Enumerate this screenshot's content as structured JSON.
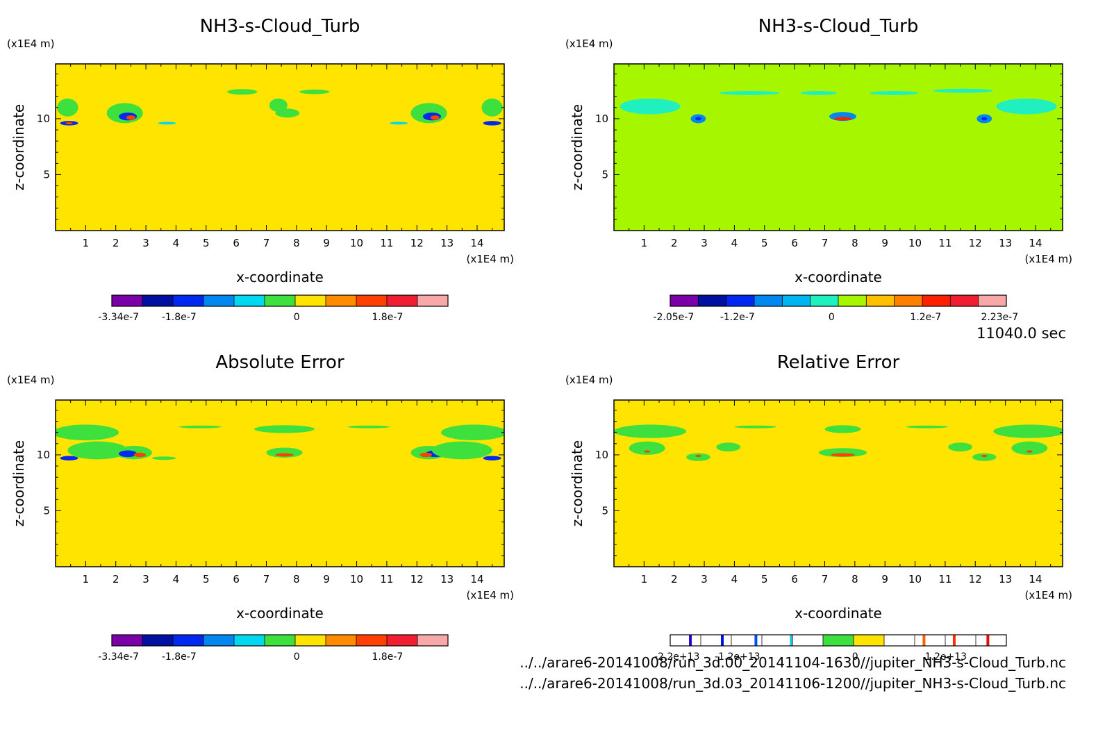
{
  "time_label": "11040.0 sec",
  "files": [
    "../../arare6-20141008/run_3d.00_20141104-1630//jupiter_NH3-s-Cloud_Turb.nc",
    "../../arare6-20141008/run_3d.03_20141106-1200//jupiter_NH3-s-Cloud_Turb.nc"
  ],
  "chart_data": [
    {
      "type": "heatmap",
      "title": "NH3-s-Cloud_Turb",
      "xlabel": "x-coordinate",
      "ylabel": "z-coordinate",
      "x_unit": "(x1E4 m)",
      "y_unit": "(x1E4 m)",
      "xlim": [
        0,
        14.9
      ],
      "ylim": [
        0,
        14.9
      ],
      "xticks": [
        1,
        2,
        3,
        4,
        5,
        6,
        7,
        8,
        9,
        10,
        11,
        12,
        13,
        14
      ],
      "yticks": [
        5,
        10
      ],
      "background_color": "#ffe400",
      "colorbar": {
        "colors": [
          "#7a00a8",
          "#0010a0",
          "#0028f0",
          "#0088f0",
          "#00d8f0",
          "#3ee03e",
          "#ffe400",
          "#ff8c00",
          "#ff4000",
          "#f01e30",
          "#f8a8a8"
        ],
        "labels": [
          "-3.34e-7",
          "-1.8e-7",
          "0",
          "1.8e-7"
        ]
      },
      "features": [
        {
          "x": 0.4,
          "z": 11.0,
          "rx": 0.35,
          "rz": 0.8,
          "color": "#3ee03e"
        },
        {
          "x": 0.45,
          "z": 9.6,
          "rx": 0.3,
          "rz": 0.2,
          "color": "#0028f0"
        },
        {
          "x": 0.45,
          "z": 9.6,
          "rx": 0.12,
          "rz": 0.1,
          "color": "#ff4000"
        },
        {
          "x": 2.3,
          "z": 10.5,
          "rx": 0.6,
          "rz": 0.9,
          "color": "#3ee03e"
        },
        {
          "x": 2.4,
          "z": 10.2,
          "rx": 0.3,
          "rz": 0.35,
          "color": "#0028f0"
        },
        {
          "x": 2.5,
          "z": 10.1,
          "rx": 0.15,
          "rz": 0.2,
          "color": "#ff4000"
        },
        {
          "x": 3.7,
          "z": 9.6,
          "rx": 0.3,
          "rz": 0.12,
          "color": "#00d8f0"
        },
        {
          "x": 6.2,
          "z": 12.4,
          "rx": 0.5,
          "rz": 0.25,
          "color": "#3ee03e"
        },
        {
          "x": 7.4,
          "z": 11.2,
          "rx": 0.3,
          "rz": 0.6,
          "color": "#3ee03e"
        },
        {
          "x": 7.7,
          "z": 10.5,
          "rx": 0.4,
          "rz": 0.4,
          "color": "#3ee03e"
        },
        {
          "x": 8.6,
          "z": 12.4,
          "rx": 0.5,
          "rz": 0.2,
          "color": "#3ee03e"
        },
        {
          "x": 11.4,
          "z": 9.6,
          "rx": 0.3,
          "rz": 0.12,
          "color": "#00d8f0"
        },
        {
          "x": 12.4,
          "z": 10.5,
          "rx": 0.6,
          "rz": 0.9,
          "color": "#3ee03e"
        },
        {
          "x": 12.5,
          "z": 10.2,
          "rx": 0.3,
          "rz": 0.35,
          "color": "#0028f0"
        },
        {
          "x": 12.6,
          "z": 10.1,
          "rx": 0.15,
          "rz": 0.2,
          "color": "#ff4000"
        },
        {
          "x": 14.5,
          "z": 11.0,
          "rx": 0.35,
          "rz": 0.8,
          "color": "#3ee03e"
        },
        {
          "x": 14.5,
          "z": 9.6,
          "rx": 0.3,
          "rz": 0.2,
          "color": "#0028f0"
        }
      ]
    },
    {
      "type": "heatmap",
      "title": "NH3-s-Cloud_Turb",
      "xlabel": "x-coordinate",
      "ylabel": "z-coordinate",
      "x_unit": "(x1E4 m)",
      "y_unit": "(x1E4 m)",
      "xlim": [
        0,
        14.9
      ],
      "ylim": [
        0,
        14.9
      ],
      "xticks": [
        1,
        2,
        3,
        4,
        5,
        6,
        7,
        8,
        9,
        10,
        11,
        12,
        13,
        14
      ],
      "yticks": [
        5,
        10
      ],
      "background_color": "#a6f600",
      "colorbar": {
        "colors": [
          "#7a00a8",
          "#0010a0",
          "#0028f0",
          "#0088f0",
          "#00b4f0",
          "#20f0c0",
          "#a6f600",
          "#ffc000",
          "#ff8000",
          "#ff2000",
          "#f01e30",
          "#f8a8a8"
        ],
        "labels": [
          "-2.05e-7",
          "-1.2e-7",
          "0",
          "1.2e-7",
          "2.23e-7"
        ]
      },
      "features": [
        {
          "x": 1.2,
          "z": 11.1,
          "rx": 1.0,
          "rz": 0.7,
          "color": "#20f0c0"
        },
        {
          "x": 2.8,
          "z": 10.0,
          "rx": 0.25,
          "rz": 0.4,
          "color": "#0088f0"
        },
        {
          "x": 2.8,
          "z": 10.0,
          "rx": 0.1,
          "rz": 0.15,
          "color": "#0028f0"
        },
        {
          "x": 4.5,
          "z": 12.3,
          "rx": 1.0,
          "rz": 0.18,
          "color": "#20f0c0"
        },
        {
          "x": 6.8,
          "z": 12.3,
          "rx": 0.6,
          "rz": 0.18,
          "color": "#20f0c0"
        },
        {
          "x": 7.6,
          "z": 10.2,
          "rx": 0.45,
          "rz": 0.4,
          "color": "#0088f0"
        },
        {
          "x": 7.6,
          "z": 10.0,
          "rx": 0.3,
          "rz": 0.15,
          "color": "#ff2000"
        },
        {
          "x": 9.3,
          "z": 12.3,
          "rx": 0.8,
          "rz": 0.18,
          "color": "#20f0c0"
        },
        {
          "x": 11.6,
          "z": 12.5,
          "rx": 1.0,
          "rz": 0.18,
          "color": "#20f0c0"
        },
        {
          "x": 12.3,
          "z": 10.0,
          "rx": 0.25,
          "rz": 0.4,
          "color": "#0088f0"
        },
        {
          "x": 12.3,
          "z": 10.0,
          "rx": 0.1,
          "rz": 0.15,
          "color": "#0028f0"
        },
        {
          "x": 13.7,
          "z": 11.1,
          "rx": 1.0,
          "rz": 0.7,
          "color": "#20f0c0"
        }
      ]
    },
    {
      "type": "heatmap",
      "title": "Absolute Error",
      "xlabel": "x-coordinate",
      "ylabel": "z-coordinate",
      "x_unit": "(x1E4 m)",
      "y_unit": "(x1E4 m)",
      "xlim": [
        0,
        14.9
      ],
      "ylim": [
        0,
        14.9
      ],
      "xticks": [
        1,
        2,
        3,
        4,
        5,
        6,
        7,
        8,
        9,
        10,
        11,
        12,
        13,
        14
      ],
      "yticks": [
        5,
        10
      ],
      "background_color": "#ffe400",
      "colorbar": {
        "colors": [
          "#7a00a8",
          "#0010a0",
          "#0028f0",
          "#0088f0",
          "#00d8f0",
          "#3ee03e",
          "#ffe400",
          "#ff8c00",
          "#ff4000",
          "#f01e30",
          "#f8a8a8"
        ],
        "labels": [
          "-3.34e-7",
          "-1.8e-7",
          "0",
          "1.8e-7"
        ]
      },
      "features": [
        {
          "x": 1.0,
          "z": 12.0,
          "rx": 1.1,
          "rz": 0.7,
          "color": "#3ee03e"
        },
        {
          "x": 1.4,
          "z": 10.4,
          "rx": 1.0,
          "rz": 0.8,
          "color": "#3ee03e"
        },
        {
          "x": 0.45,
          "z": 9.7,
          "rx": 0.3,
          "rz": 0.2,
          "color": "#0028f0"
        },
        {
          "x": 2.6,
          "z": 10.2,
          "rx": 0.6,
          "rz": 0.6,
          "color": "#3ee03e"
        },
        {
          "x": 2.4,
          "z": 10.1,
          "rx": 0.3,
          "rz": 0.3,
          "color": "#0028f0"
        },
        {
          "x": 2.8,
          "z": 10.0,
          "rx": 0.2,
          "rz": 0.2,
          "color": "#ff4000"
        },
        {
          "x": 3.6,
          "z": 9.7,
          "rx": 0.4,
          "rz": 0.15,
          "color": "#3ee03e"
        },
        {
          "x": 4.8,
          "z": 12.5,
          "rx": 0.7,
          "rz": 0.12,
          "color": "#3ee03e"
        },
        {
          "x": 7.6,
          "z": 12.3,
          "rx": 1.0,
          "rz": 0.35,
          "color": "#3ee03e"
        },
        {
          "x": 7.6,
          "z": 10.2,
          "rx": 0.6,
          "rz": 0.45,
          "color": "#3ee03e"
        },
        {
          "x": 7.6,
          "z": 10.0,
          "rx": 0.3,
          "rz": 0.15,
          "color": "#ff4000"
        },
        {
          "x": 10.4,
          "z": 12.5,
          "rx": 0.7,
          "rz": 0.12,
          "color": "#3ee03e"
        },
        {
          "x": 12.4,
          "z": 10.2,
          "rx": 0.6,
          "rz": 0.6,
          "color": "#3ee03e"
        },
        {
          "x": 12.6,
          "z": 10.1,
          "rx": 0.3,
          "rz": 0.3,
          "color": "#0028f0"
        },
        {
          "x": 12.3,
          "z": 10.0,
          "rx": 0.2,
          "rz": 0.2,
          "color": "#ff4000"
        },
        {
          "x": 13.9,
          "z": 12.0,
          "rx": 1.1,
          "rz": 0.7,
          "color": "#3ee03e"
        },
        {
          "x": 13.5,
          "z": 10.4,
          "rx": 1.0,
          "rz": 0.8,
          "color": "#3ee03e"
        },
        {
          "x": 14.5,
          "z": 9.7,
          "rx": 0.3,
          "rz": 0.2,
          "color": "#0028f0"
        }
      ]
    },
    {
      "type": "heatmap",
      "title": "Relative Error",
      "xlabel": "x-coordinate",
      "ylabel": "z-coordinate",
      "x_unit": "(x1E4 m)",
      "y_unit": "(x1E4 m)",
      "xlim": [
        0,
        14.9
      ],
      "ylim": [
        0,
        14.9
      ],
      "xticks": [
        1,
        2,
        3,
        4,
        5,
        6,
        7,
        8,
        9,
        10,
        11,
        12,
        13,
        14
      ],
      "yticks": [
        5,
        10
      ],
      "background_color": "#ffe400",
      "colorbar": {
        "colors": [
          "#ffffff",
          "#ffffff",
          "#ffffff",
          "#ffffff",
          "#ffffff",
          "#3ee03e",
          "#ffe400",
          "#ffffff",
          "#ffffff",
          "#ffffff",
          "#ffffff"
        ],
        "marks": [
          "#3000d0",
          "#0010e0",
          "#0050f0",
          "#20c8f0",
          "#ff6000",
          "#ff3000",
          "#e01010"
        ],
        "labels": [
          "-2.2e+13",
          "-1.2e+13",
          "0",
          "1.2e+13"
        ]
      },
      "features": [
        {
          "x": 1.2,
          "z": 12.1,
          "rx": 1.2,
          "rz": 0.6,
          "color": "#3ee03e"
        },
        {
          "x": 1.1,
          "z": 10.6,
          "rx": 0.6,
          "rz": 0.6,
          "color": "#3ee03e"
        },
        {
          "x": 1.1,
          "z": 10.3,
          "rx": 0.1,
          "rz": 0.1,
          "color": "#ff4000"
        },
        {
          "x": 2.8,
          "z": 9.8,
          "rx": 0.4,
          "rz": 0.35,
          "color": "#3ee03e"
        },
        {
          "x": 2.8,
          "z": 9.9,
          "rx": 0.1,
          "rz": 0.1,
          "color": "#ff4000"
        },
        {
          "x": 3.8,
          "z": 10.7,
          "rx": 0.4,
          "rz": 0.4,
          "color": "#3ee03e"
        },
        {
          "x": 4.7,
          "z": 12.5,
          "rx": 0.7,
          "rz": 0.12,
          "color": "#3ee03e"
        },
        {
          "x": 7.6,
          "z": 12.3,
          "rx": 0.6,
          "rz": 0.35,
          "color": "#3ee03e"
        },
        {
          "x": 7.6,
          "z": 10.2,
          "rx": 0.8,
          "rz": 0.4,
          "color": "#3ee03e"
        },
        {
          "x": 7.6,
          "z": 10.0,
          "rx": 0.4,
          "rz": 0.15,
          "color": "#ff4000"
        },
        {
          "x": 10.4,
          "z": 12.5,
          "rx": 0.7,
          "rz": 0.12,
          "color": "#3ee03e"
        },
        {
          "x": 11.5,
          "z": 10.7,
          "rx": 0.4,
          "rz": 0.4,
          "color": "#3ee03e"
        },
        {
          "x": 12.3,
          "z": 9.8,
          "rx": 0.4,
          "rz": 0.35,
          "color": "#3ee03e"
        },
        {
          "x": 12.3,
          "z": 9.9,
          "rx": 0.1,
          "rz": 0.1,
          "color": "#ff4000"
        },
        {
          "x": 13.8,
          "z": 12.1,
          "rx": 1.2,
          "rz": 0.6,
          "color": "#3ee03e"
        },
        {
          "x": 13.8,
          "z": 10.6,
          "rx": 0.6,
          "rz": 0.6,
          "color": "#3ee03e"
        },
        {
          "x": 13.8,
          "z": 10.3,
          "rx": 0.1,
          "rz": 0.1,
          "color": "#ff4000"
        }
      ]
    }
  ]
}
